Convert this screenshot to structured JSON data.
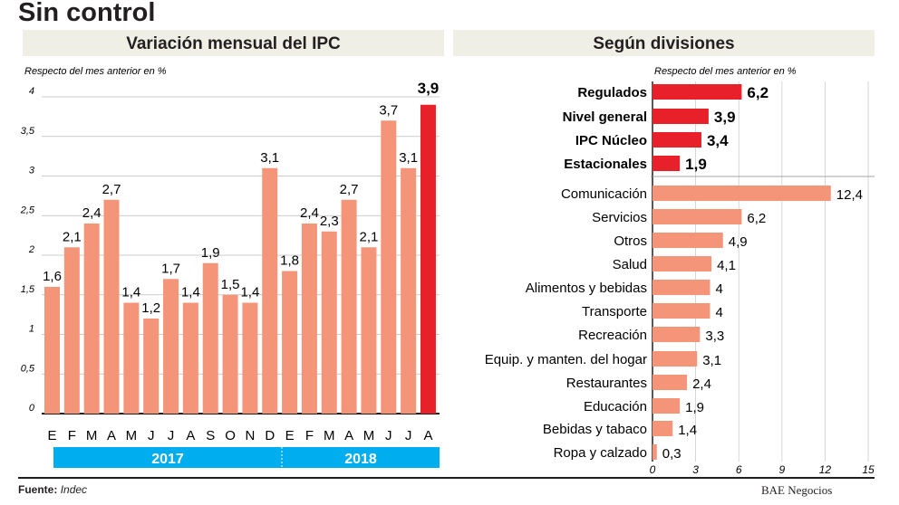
{
  "title": "Sin control",
  "footer": {
    "source_label": "Fuente:",
    "source": "Indec",
    "brand": "BAE Negocios"
  },
  "colors": {
    "bar": "#f4957a",
    "highlight": "#e8202a",
    "year_band": "#00aeef",
    "header_band": "#efefe6"
  },
  "chart_data": [
    {
      "type": "bar",
      "title": "Variación mensual del IPC",
      "subtitle": "Respecto del mes anterior en %",
      "categories": [
        "E",
        "F",
        "M",
        "A",
        "M",
        "J",
        "J",
        "A",
        "S",
        "O",
        "N",
        "D",
        "E",
        "F",
        "M",
        "A",
        "M",
        "J",
        "J",
        "A"
      ],
      "years": [
        {
          "label": "2017",
          "months": 12
        },
        {
          "label": "2018",
          "months": 8
        }
      ],
      "values": [
        1.6,
        2.1,
        2.4,
        2.7,
        1.4,
        1.2,
        1.7,
        1.4,
        1.9,
        1.5,
        1.4,
        3.1,
        1.8,
        2.4,
        2.3,
        2.7,
        2.1,
        3.7,
        3.1,
        3.9
      ],
      "value_labels": [
        "1,6",
        "2,1",
        "2,4",
        "2,7",
        "1,4",
        "1,2",
        "1,7",
        "1,4",
        "1,9",
        "1,5",
        "1,4",
        "3,1",
        "1,8",
        "2,4",
        "2,3",
        "2,7",
        "2,1",
        "3,7",
        "3,1",
        "3,9"
      ],
      "highlight_index": 19,
      "ylim": [
        0,
        4
      ],
      "yticks": [
        "0",
        "0,5",
        "1",
        "1,5",
        "2",
        "2,5",
        "3",
        "3,5",
        "4"
      ],
      "grid": true
    },
    {
      "type": "bar",
      "orientation": "horizontal",
      "title": "Según divisiones",
      "subtitle": "Respecto del mes anterior en %",
      "highlighted_series": {
        "categories": [
          "Regulados",
          "Nivel general",
          "IPC Núcleo",
          "Estacionales"
        ],
        "values": [
          6.2,
          3.9,
          3.4,
          1.9
        ],
        "value_labels": [
          "6,2",
          "3,9",
          "3,4",
          "1,9"
        ]
      },
      "categories": [
        "Comunicación",
        "Servicios",
        "Otros",
        "Salud",
        "Alimentos y bebidas",
        "Transporte",
        "Recreación",
        "Equip. y manten. del hogar",
        "Restaurantes",
        "Educación",
        "Bebidas y tabaco",
        "Ropa y calzado"
      ],
      "values": [
        12.4,
        6.2,
        4.9,
        4.1,
        4,
        4,
        3.3,
        3.1,
        2.4,
        1.9,
        1.4,
        0.3
      ],
      "value_labels": [
        "12,4",
        "6,2",
        "4,9",
        "4,1",
        "4",
        "4",
        "3,3",
        "3,1",
        "2,4",
        "1,9",
        "1,4",
        "0,3"
      ],
      "xlim": [
        0,
        15
      ],
      "xticks": [
        "0",
        "3",
        "6",
        "9",
        "12",
        "15"
      ],
      "grid": true
    }
  ]
}
